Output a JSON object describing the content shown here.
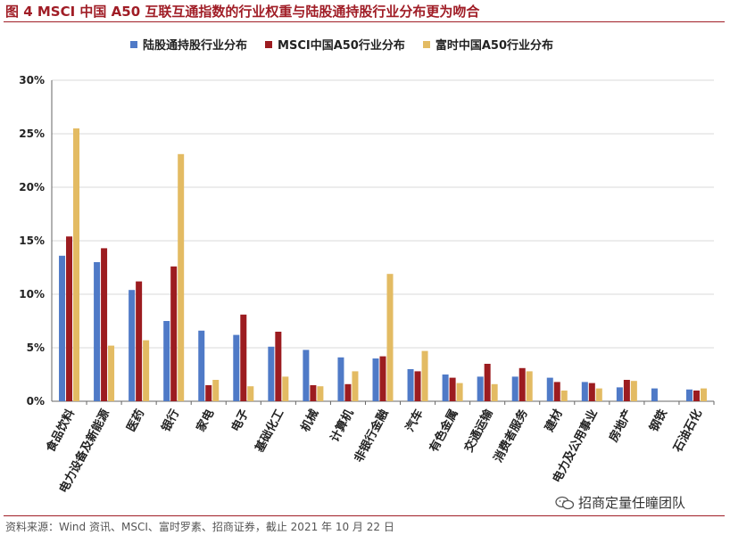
{
  "header": {
    "title": "图 4 MSCI 中国 A50 互联互通指数的行业权重与陆股通持股行业分布更为吻合"
  },
  "footer": {
    "source": "资料来源：Wind 资讯、MSCI、富时罗素、招商证券，截止 2021 年 10 月 22 日",
    "watermark": "招商定量任瞳团队"
  },
  "colors": {
    "title": "#a01d26",
    "series": [
      "#4f7ac7",
      "#9c1c20",
      "#e3bb63"
    ],
    "grid": "#d9d9d9"
  },
  "chart_data": {
    "type": "bar",
    "title": "",
    "xlabel": "",
    "ylabel": "",
    "ylim": [
      0,
      30
    ],
    "y_ticks": [
      0,
      5,
      10,
      15,
      20,
      25,
      30
    ],
    "y_tick_labels": [
      "0%",
      "5%",
      "10%",
      "15%",
      "20%",
      "25%",
      "30%"
    ],
    "grid": true,
    "legend_position": "top",
    "categories": [
      "食品饮料",
      "电力设备及新能源",
      "医药",
      "银行",
      "家电",
      "电子",
      "基础化工",
      "机械",
      "计算机",
      "非银行金融",
      "汽车",
      "有色金属",
      "交通运输",
      "消费者服务",
      "建材",
      "电力及公用事业",
      "房地产",
      "钢铁",
      "石油石化"
    ],
    "series": [
      {
        "name": "陆股通持股行业分布",
        "values": [
          13.6,
          13.0,
          10.4,
          7.5,
          6.6,
          6.2,
          5.1,
          4.8,
          4.1,
          4.0,
          3.0,
          2.5,
          2.3,
          2.3,
          2.2,
          1.8,
          1.3,
          1.2,
          1.1
        ]
      },
      {
        "name": "MSCI中国A50行业分布",
        "values": [
          15.4,
          14.3,
          11.2,
          12.6,
          1.5,
          8.1,
          6.5,
          1.5,
          1.6,
          4.2,
          2.8,
          2.2,
          3.5,
          3.1,
          1.8,
          1.7,
          2.0,
          0,
          1.0
        ]
      },
      {
        "name": "富时中国A50行业分布",
        "values": [
          25.5,
          5.2,
          5.7,
          23.1,
          2.0,
          1.4,
          2.3,
          1.4,
          2.8,
          11.9,
          4.7,
          1.7,
          1.6,
          2.8,
          1.0,
          1.2,
          1.9,
          0,
          1.2
        ]
      }
    ]
  }
}
